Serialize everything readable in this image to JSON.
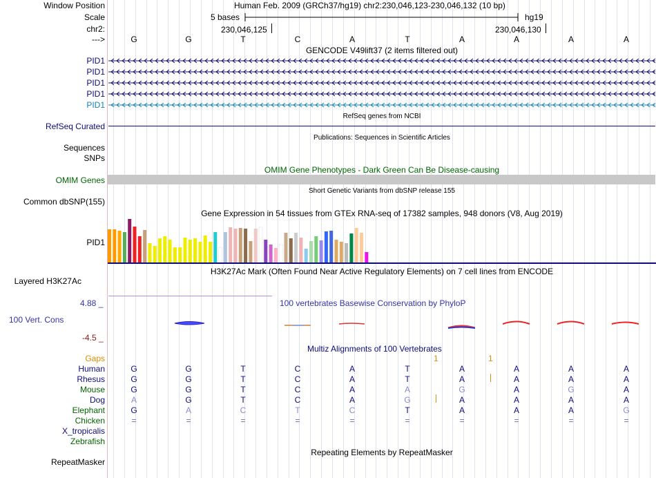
{
  "header": {
    "window_position_label": "Window Position",
    "window_position_value": "Human Feb. 2009 (GRCh37/hg19)   chr2:230,046,123-230,046,132 (10 bp)",
    "scale_label": "Scale",
    "scale_value": "5 bases",
    "scale_assembly": "hg19",
    "chrom_label": "chr2:",
    "coord_left": "230,046,125",
    "coord_right": "230,046,130",
    "arrow_label": "--->"
  },
  "sequence": [
    "G",
    "G",
    "T",
    "C",
    "A",
    "T",
    "A",
    "A",
    "A",
    "A"
  ],
  "gencode": {
    "title": "GENCODE V49lift37 (2 items filtered out)",
    "items": [
      {
        "label": "PID1",
        "color": "#0c0c78"
      },
      {
        "label": "PID1",
        "color": "#0c0c78"
      },
      {
        "label": "PID1",
        "color": "#0c0c78"
      },
      {
        "label": "PID1",
        "color": "#0c0c78"
      },
      {
        "label": "PID1",
        "color": "#1482b4"
      }
    ]
  },
  "refseq": {
    "title": "RefSeq genes from NCBI",
    "label": "RefSeq Curated",
    "color": "#0c0c78"
  },
  "publications": {
    "title": "Publications: Sequences in Scientific Articles",
    "label_seq": "Sequences",
    "label_snps": "SNPs"
  },
  "omim": {
    "title": "OMIM Gene Phenotypes - Dark Green Can Be Disease-causing",
    "label": "OMIM Genes",
    "color": "#006400"
  },
  "dbsnp": {
    "title": "Short Genetic Variants from dbSNP release 155",
    "label": "Common dbSNP(155)"
  },
  "gtex": {
    "title": "Gene Expression in 54 tissues from GTEx RNA-seq of 17382 samples, 948 donors (V8, Aug 2019)",
    "label": "PID1",
    "values": [
      0.75,
      0.75,
      0.72,
      0.69,
      0.98,
      0.81,
      0.6,
      0.74,
      0.43,
      0.37,
      0.54,
      0.6,
      0.52,
      0.35,
      0.34,
      0.57,
      0.52,
      0.54,
      0.47,
      0.61,
      0.47,
      0.68,
      0.35,
      0.69,
      0.8,
      0.76,
      0.78,
      0.76,
      0.49,
      0.77,
      0.8,
      0.52,
      0.4,
      0.33,
      0.4,
      0.67,
      0.54,
      0.67,
      0.56,
      0.32,
      0.48,
      0.6,
      0.5,
      0.71,
      0.72,
      0.52,
      0.47,
      0.43,
      0.65,
      0.78,
      0.67,
      0.23
    ],
    "colors": [
      "#ff9900",
      "#ff9900",
      "#ffa800",
      "#55ae55",
      "#8b1a62",
      "#ee2222",
      "#ee2222",
      "#c8a07a",
      "#eeee00",
      "#eeee00",
      "#eeee00",
      "#eeee00",
      "#eeee00",
      "#eeee00",
      "#eeee00",
      "#eeee00",
      "#eeee00",
      "#eeee00",
      "#eeee00",
      "#eeee00",
      "#eeee00",
      "#22cccc",
      "#ffffff",
      "#b0c4de",
      "#f0b4b4",
      "#f0b4b4",
      "#c8a07a",
      "#8b6b4a",
      "#c8a07a",
      "#f0c8c8",
      "#ffffff",
      "#8844bb",
      "#cc66cc",
      "#ffb0c8",
      "#ffffff",
      "#c8aa88",
      "#8b6b4a",
      "#cccccc",
      "#f0b4b4",
      "#88ccee",
      "#aaddaa",
      "#77cc77",
      "#9988ee",
      "#3366ff",
      "#4466dd",
      "#ddaa66",
      "#ddaa66",
      "#bbbbbb",
      "#008844",
      "#ffcc99",
      "#ffcc99",
      "#ee11ee"
    ]
  },
  "h3k27ac": {
    "title": "H3K27Ac Mark (Often Found Near Active Regulatory Elements) on 7 cell lines from ENCODE",
    "label": "Layered H3K27Ac"
  },
  "phylop": {
    "title": "100 vertebrates Basewise Conservation by PhyloP",
    "label": "100 Vert. Cons",
    "max": "4.88 _",
    "min": "-4.5 _",
    "color": "#3333aa"
  },
  "multiz": {
    "title": "Multiz Alignments of 100 Vertebrates",
    "gaps_label": "Gaps",
    "gaps_color": "#e08c00",
    "gap_marks": [
      "1",
      "1"
    ],
    "species": [
      {
        "name": "Human",
        "color": "#0c0c78",
        "bases": [
          "G",
          "G",
          "T",
          "C",
          "A",
          "T",
          "A",
          "A",
          "A",
          "A"
        ]
      },
      {
        "name": "Rhesus",
        "color": "#0c0c78",
        "bases": [
          "G",
          "G",
          "T",
          "C",
          "A",
          "T",
          "A",
          "A",
          "A",
          "A"
        ]
      },
      {
        "name": "Mouse",
        "color": "#006400",
        "bases": [
          "G",
          "G",
          "T",
          "C",
          "A",
          "A",
          "G",
          "A",
          "G",
          "A"
        ]
      },
      {
        "name": "Dog",
        "color": "#0c0c78",
        "bases": [
          "A",
          "G",
          "T",
          "C",
          "A",
          "G",
          "A",
          "A",
          "A",
          "A"
        ]
      },
      {
        "name": "Elephant",
        "color": "#006400",
        "bases": [
          "G",
          "A",
          "C",
          "T",
          "C",
          "T",
          "A",
          "A",
          "A",
          "G"
        ]
      },
      {
        "name": "Chicken",
        "color": "#006400",
        "bases": [
          "=",
          "=",
          "=",
          "=",
          "=",
          "=",
          "=",
          "=",
          "=",
          "="
        ]
      },
      {
        "name": "X_tropicalis",
        "color": "#0c0c78",
        "bases": []
      },
      {
        "name": "Zebrafish",
        "color": "#006400",
        "bases": []
      }
    ]
  },
  "repeatmasker": {
    "title": "Repeating Elements by RepeatMasker",
    "label": "RepeatMasker"
  }
}
